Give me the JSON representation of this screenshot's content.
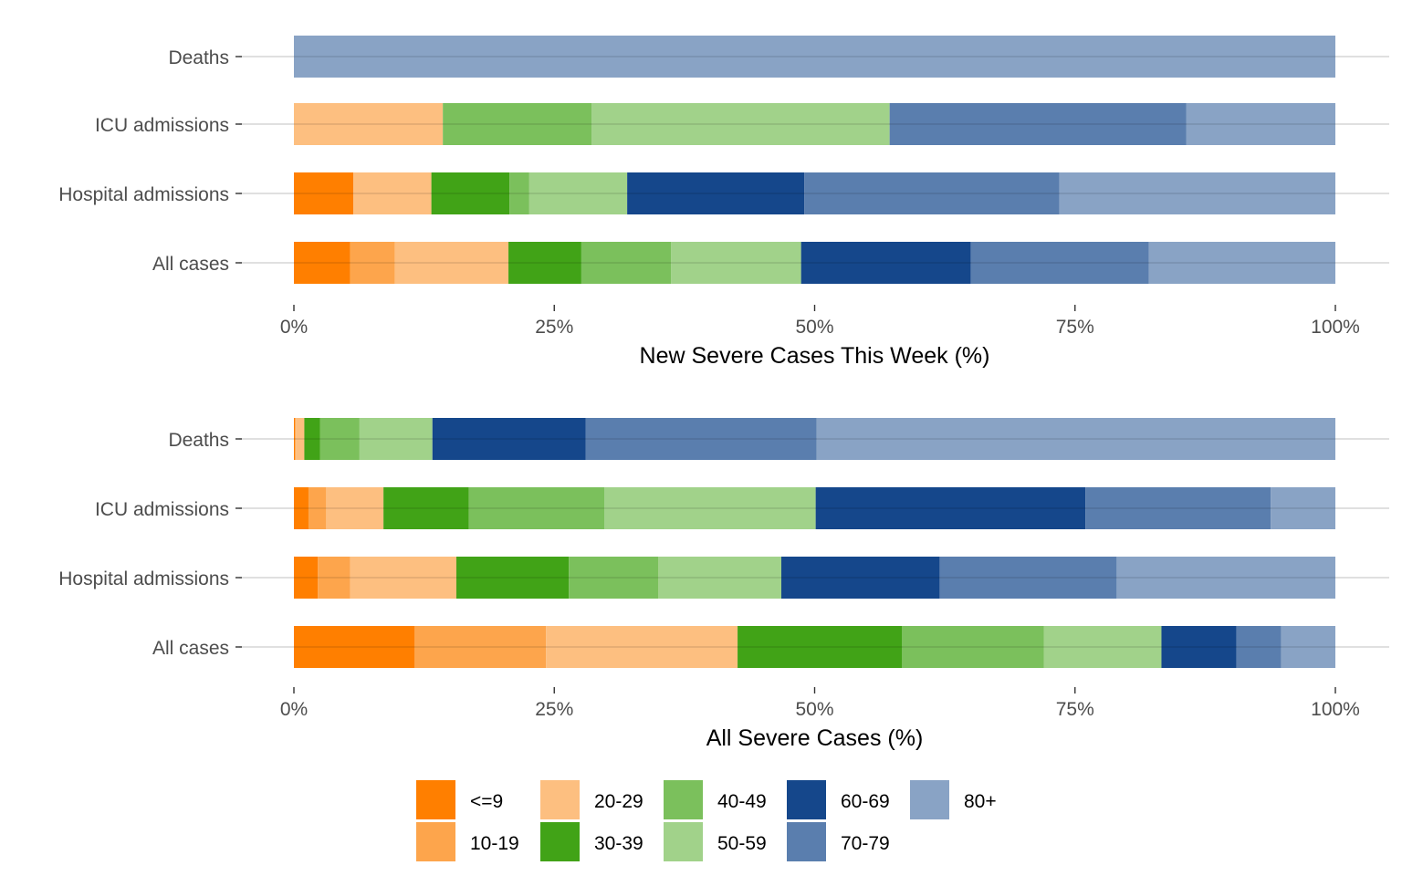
{
  "chart_data": [
    {
      "type": "bar",
      "orientation": "horizontal",
      "stacked": "percent",
      "xlabel": "New Severe Cases This Week (%)",
      "xlim": [
        0,
        100
      ],
      "x_ticks": [
        "0%",
        "25%",
        "50%",
        "75%",
        "100%"
      ],
      "categories": [
        "Deaths",
        "ICU admissions",
        "Hospital admissions",
        "All cases"
      ],
      "series": [
        {
          "name": "<=9",
          "values": [
            0,
            0,
            5.7,
            5.4
          ]
        },
        {
          "name": "10-19",
          "values": [
            0,
            0,
            0,
            4.3
          ]
        },
        {
          "name": "20-29",
          "values": [
            0,
            14.3,
            7.5,
            10.9
          ]
        },
        {
          "name": "30-39",
          "values": [
            0,
            0,
            7.5,
            7.0
          ]
        },
        {
          "name": "40-49",
          "values": [
            0,
            14.3,
            1.9,
            8.6
          ]
        },
        {
          "name": "50-59",
          "values": [
            0,
            28.6,
            9.4,
            12.5
          ]
        },
        {
          "name": "60-69",
          "values": [
            0,
            0,
            17.0,
            16.3
          ]
        },
        {
          "name": "70-79",
          "values": [
            0,
            28.5,
            24.5,
            17.1
          ]
        },
        {
          "name": "80+",
          "values": [
            100,
            14.3,
            26.5,
            17.9
          ]
        }
      ]
    },
    {
      "type": "bar",
      "orientation": "horizontal",
      "stacked": "percent",
      "xlabel": "All Severe Cases (%)",
      "xlim": [
        0,
        100
      ],
      "x_ticks": [
        "0%",
        "25%",
        "50%",
        "75%",
        "100%"
      ],
      "categories": [
        "Deaths",
        "ICU admissions",
        "Hospital admissions",
        "All cases"
      ],
      "series": [
        {
          "name": "<=9",
          "values": [
            0.1,
            1.4,
            2.3,
            11.6
          ]
        },
        {
          "name": "10-19",
          "values": [
            0.1,
            1.7,
            3.1,
            12.6
          ]
        },
        {
          "name": "20-29",
          "values": [
            0.8,
            5.5,
            10.2,
            18.4
          ]
        },
        {
          "name": "30-39",
          "values": [
            1.5,
            8.2,
            10.8,
            15.8
          ]
        },
        {
          "name": "40-49",
          "values": [
            3.8,
            13.0,
            8.6,
            13.6
          ]
        },
        {
          "name": "50-59",
          "values": [
            7.0,
            20.3,
            11.8,
            11.3
          ]
        },
        {
          "name": "60-69",
          "values": [
            14.7,
            25.9,
            15.2,
            7.2
          ]
        },
        {
          "name": "70-79",
          "values": [
            22.2,
            17.8,
            17.0,
            4.3
          ]
        },
        {
          "name": "80+",
          "values": [
            49.8,
            6.2,
            21.0,
            5.2
          ]
        }
      ]
    }
  ],
  "legend": {
    "position": "bottom",
    "items": [
      {
        "label": "<=9",
        "color": "#ff7f00"
      },
      {
        "label": "10-19",
        "color": "#fda54c"
      },
      {
        "label": "20-29",
        "color": "#fdbf80"
      },
      {
        "label": "30-39",
        "color": "#41a317"
      },
      {
        "label": "40-49",
        "color": "#7bc05c"
      },
      {
        "label": "50-59",
        "color": "#a1d28a"
      },
      {
        "label": "60-69",
        "color": "#15478b"
      },
      {
        "label": "70-79",
        "color": "#5a7eae"
      },
      {
        "label": "80+",
        "color": "#89a3c5"
      }
    ]
  }
}
